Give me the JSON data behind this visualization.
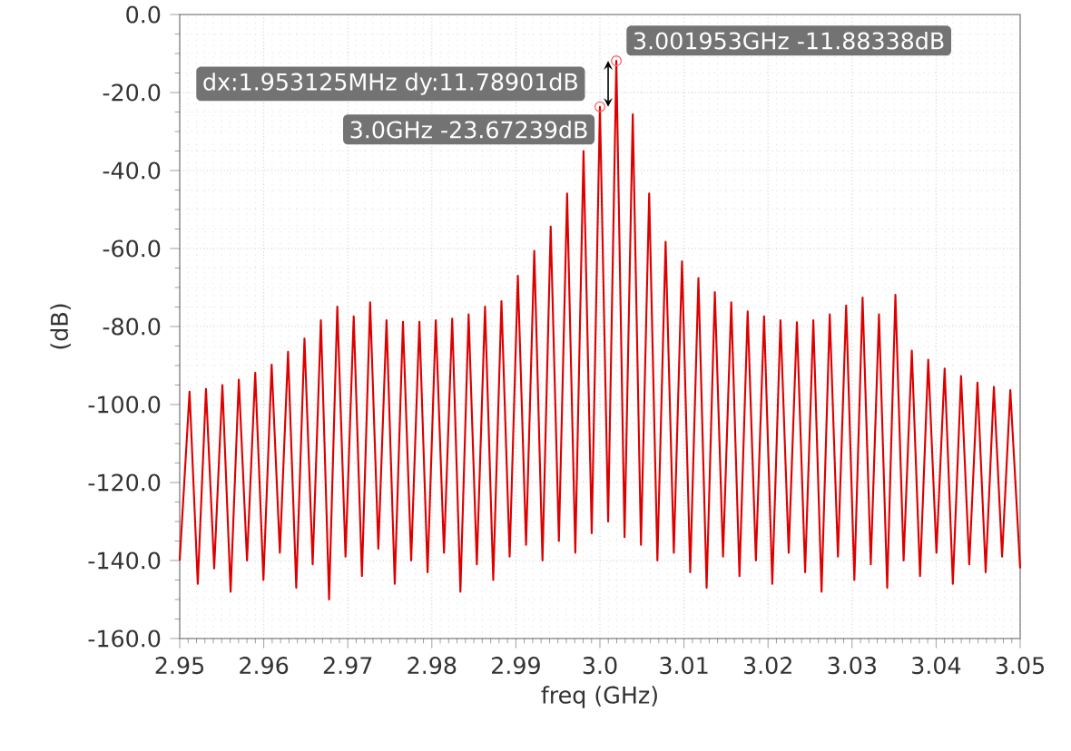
{
  "chart_data": {
    "type": "line",
    "xlabel": "freq (GHz)",
    "ylabel": "(dB)",
    "xlim": [
      2.95,
      3.05
    ],
    "ylim": [
      -160,
      0
    ],
    "xticks": [
      2.95,
      2.96,
      2.97,
      2.98,
      2.99,
      {
        "value": 3.0,
        "label": "3.0"
      },
      3.01,
      3.02,
      3.03,
      3.04,
      3.05
    ],
    "yticks": [
      {
        "value": -160,
        "label": "-160.0"
      },
      {
        "value": -140,
        "label": "-140.0"
      },
      {
        "value": -120,
        "label": "-120.0"
      },
      {
        "value": -100,
        "label": "-100.0"
      },
      {
        "value": -80,
        "label": "-80.0"
      },
      {
        "value": -60,
        "label": "-60.0"
      },
      {
        "value": -40,
        "label": "-40.0"
      },
      {
        "value": -20,
        "label": "-20.0"
      },
      {
        "value": 0,
        "label": "0.0"
      }
    ],
    "grid": true,
    "series": [
      {
        "color": "#dd0000",
        "x": [
          2.95,
          2.951172,
          2.952148,
          2.953125,
          2.954102,
          2.955078,
          2.956055,
          2.957031,
          2.958008,
          2.958984,
          2.959961,
          2.960938,
          2.961914,
          2.962891,
          2.963867,
          2.964844,
          2.96582,
          2.966797,
          2.967773,
          2.96875,
          2.969727,
          2.970703,
          2.97168,
          2.972656,
          2.973633,
          2.974609,
          2.975586,
          2.976563,
          2.977539,
          2.978516,
          2.979492,
          2.980469,
          2.981445,
          2.982422,
          2.983398,
          2.984375,
          2.985352,
          2.986328,
          2.987305,
          2.988281,
          2.989258,
          2.990234,
          2.991211,
          2.992188,
          2.993164,
          2.994141,
          2.995117,
          2.996094,
          2.99707,
          2.998047,
          2.999023,
          3.0,
          3.000977,
          3.001953,
          3.00293,
          3.003906,
          3.004883,
          3.005859,
          3.006836,
          3.007813,
          3.008789,
          3.009766,
          3.010742,
          3.011719,
          3.012695,
          3.013672,
          3.014648,
          3.015625,
          3.016602,
          3.017578,
          3.018555,
          3.019531,
          3.020508,
          3.021484,
          3.022461,
          3.023438,
          3.024414,
          3.025391,
          3.026367,
          3.027344,
          3.02832,
          3.029297,
          3.030273,
          3.03125,
          3.032227,
          3.033203,
          3.03418,
          3.035156,
          3.036133,
          3.037109,
          3.038086,
          3.039063,
          3.040039,
          3.041016,
          3.041992,
          3.042969,
          3.043945,
          3.044922,
          3.045898,
          3.046875,
          3.047852,
          3.048828,
          3.05
        ],
        "values": [
          -140,
          -96.7,
          -146,
          -96.0,
          -142,
          -95.0,
          -148,
          -93.6,
          -140,
          -91.9,
          -145,
          -89.8,
          -138,
          -86.5,
          -147,
          -83.1,
          -141,
          -78.4,
          -150,
          -74.9,
          -139,
          -77.4,
          -144,
          -73.8,
          -137,
          -78.4,
          -146,
          -78.8,
          -140,
          -78.8,
          -143,
          -78.4,
          -138,
          -78.0,
          -148,
          -76.9,
          -141,
          -74.9,
          -145,
          -73.5,
          -139,
          -67,
          -136,
          -60.6,
          -140,
          -54.4,
          -135,
          -45.9,
          -138,
          -35.0,
          -133,
          -23.67239,
          -130,
          -11.88338,
          -134,
          -25.6,
          -136,
          -45.9,
          -140,
          -58.3,
          -138,
          -63.3,
          -143,
          -67.6,
          -147,
          -71.2,
          -139,
          -73.8,
          -144,
          -76.1,
          -140,
          -77.4,
          -146,
          -78.4,
          -138,
          -78.9,
          -143,
          -78.4,
          -148,
          -76.9,
          -139,
          -74.6,
          -145,
          -72.6,
          -141,
          -76.9,
          -147,
          -71.9,
          -140,
          -86.2,
          -144,
          -88.5,
          -138,
          -90.8,
          -146,
          -92.7,
          -141,
          -94.4,
          -143,
          -95.5,
          -139,
          -96.3,
          -142
        ]
      }
    ],
    "annotations": [
      {
        "text": "3.001953GHz -11.88338dB",
        "x": 3.001953,
        "y": -11.88338
      },
      "dx:1.953125MHz dy:11.78901dB",
      {
        "text": "3.0GHz -23.67239dB",
        "x": 3.0,
        "y": -23.67239
      }
    ]
  }
}
